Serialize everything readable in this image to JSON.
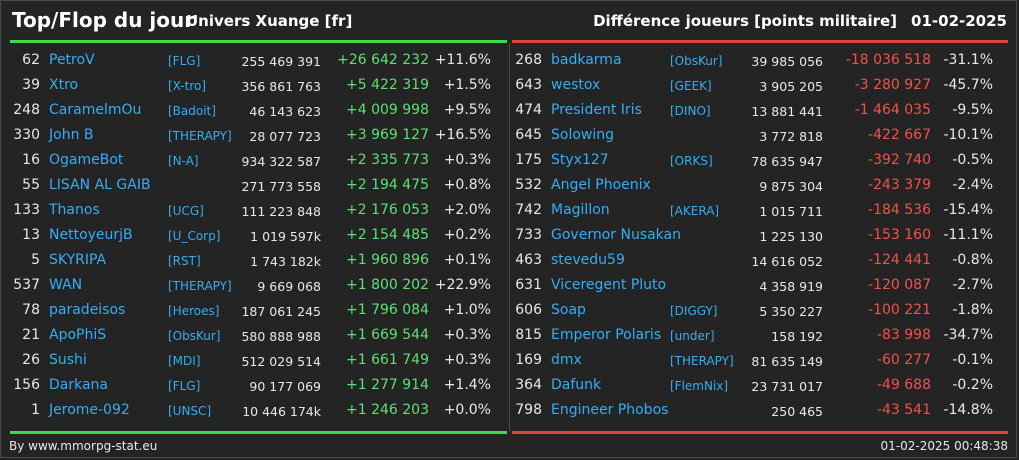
{
  "header": {
    "title": "Top/Flop du jour",
    "universe": "Univers Xuange [fr]",
    "right_title": "Différence joueurs [points militaire]",
    "date": "01-02-2025"
  },
  "colors": {
    "accent_blue": "#34aef5",
    "up_green": "#5ee072",
    "down_red": "#f0524a",
    "bg": "#242424"
  },
  "top": [
    {
      "rank": "62",
      "name": "PetroV",
      "ally": "[FLG]",
      "points": "255 469 391",
      "diff": "+26 642 232",
      "pct": "+11.6%"
    },
    {
      "rank": "39",
      "name": "Xtro",
      "ally": "[X-tro]",
      "points": "356 861 763",
      "diff": "+5 422 319",
      "pct": "+1.5%"
    },
    {
      "rank": "248",
      "name": "CaramelmOu",
      "ally": "[Badoit]",
      "points": "46 143 623",
      "diff": "+4 009 998",
      "pct": "+9.5%"
    },
    {
      "rank": "330",
      "name": "John B",
      "ally": "[THERAPY]",
      "points": "28 077 723",
      "diff": "+3 969 127",
      "pct": "+16.5%"
    },
    {
      "rank": "16",
      "name": "OgameBot",
      "ally": "[N-A]",
      "points": "934 322 587",
      "diff": "+2 335 773",
      "pct": "+0.3%"
    },
    {
      "rank": "55",
      "name": "LISAN AL GAIB",
      "ally": "",
      "points": "271 773 558",
      "diff": "+2 194 475",
      "pct": "+0.8%"
    },
    {
      "rank": "133",
      "name": "Thanos",
      "ally": "[UCG]",
      "points": "111 223 848",
      "diff": "+2 176 053",
      "pct": "+2.0%"
    },
    {
      "rank": "13",
      "name": "NettoyeurjB",
      "ally": "[U_Corp]",
      "points": "1 019 597k",
      "diff": "+2 154 485",
      "pct": "+0.2%"
    },
    {
      "rank": "5",
      "name": "SKYRIPA",
      "ally": "[RST]",
      "points": "1 743 182k",
      "diff": "+1 960 896",
      "pct": "+0.1%"
    },
    {
      "rank": "537",
      "name": "WAN",
      "ally": "[THERAPY]",
      "points": "9 669 068",
      "diff": "+1 800 202",
      "pct": "+22.9%"
    },
    {
      "rank": "78",
      "name": "paradeisos",
      "ally": "[Heroes]",
      "points": "187 061 245",
      "diff": "+1 796 084",
      "pct": "+1.0%"
    },
    {
      "rank": "21",
      "name": "ApoPhiS",
      "ally": "[ObsKur]",
      "points": "580 888 988",
      "diff": "+1 669 544",
      "pct": "+0.3%"
    },
    {
      "rank": "26",
      "name": "Sushi",
      "ally": "[MDI]",
      "points": "512 029 514",
      "diff": "+1 661 749",
      "pct": "+0.3%"
    },
    {
      "rank": "156",
      "name": "Darkana",
      "ally": "[FLG]",
      "points": "90 177 069",
      "diff": "+1 277 914",
      "pct": "+1.4%"
    },
    {
      "rank": "1",
      "name": "Jerome-092",
      "ally": "[UNSC]",
      "points": "10 446 174k",
      "diff": "+1 246 203",
      "pct": "+0.0%"
    }
  ],
  "flop": [
    {
      "rank": "268",
      "name": "badkarma",
      "ally": "[ObsKur]",
      "points": "39 985 056",
      "diff": "-18 036 518",
      "pct": "-31.1%"
    },
    {
      "rank": "643",
      "name": "westox",
      "ally": "[GEEK]",
      "points": "3 905 205",
      "diff": "-3 280 927",
      "pct": "-45.7%"
    },
    {
      "rank": "474",
      "name": "President Iris",
      "ally": "[DINO]",
      "points": "13 881 441",
      "diff": "-1 464 035",
      "pct": "-9.5%"
    },
    {
      "rank": "645",
      "name": "Solowing",
      "ally": "",
      "points": "3 772 818",
      "diff": "-422 667",
      "pct": "-10.1%"
    },
    {
      "rank": "175",
      "name": "Styx127",
      "ally": "[ORKS]",
      "points": "78 635 947",
      "diff": "-392 740",
      "pct": "-0.5%"
    },
    {
      "rank": "532",
      "name": "Angel Phoenix",
      "ally": "",
      "points": "9 875 304",
      "diff": "-243 379",
      "pct": "-2.4%"
    },
    {
      "rank": "742",
      "name": "Magillon",
      "ally": "[AKERA]",
      "points": "1 015 711",
      "diff": "-184 536",
      "pct": "-15.4%"
    },
    {
      "rank": "733",
      "name": "Governor Nusakan",
      "ally": "",
      "points": "1 225 130",
      "diff": "-153 160",
      "pct": "-11.1%"
    },
    {
      "rank": "463",
      "name": "stevedu59",
      "ally": "",
      "points": "14 616 052",
      "diff": "-124 441",
      "pct": "-0.8%"
    },
    {
      "rank": "631",
      "name": "Viceregent Pluto",
      "ally": "",
      "points": "4 358 919",
      "diff": "-120 087",
      "pct": "-2.7%"
    },
    {
      "rank": "606",
      "name": "Soap",
      "ally": "[DIGGY]",
      "points": "5 350 227",
      "diff": "-100 221",
      "pct": "-1.8%"
    },
    {
      "rank": "815",
      "name": "Emperor Polaris",
      "ally": "[under]",
      "points": "158 192",
      "diff": "-83 998",
      "pct": "-34.7%"
    },
    {
      "rank": "169",
      "name": "dmx",
      "ally": "[THERAPY]",
      "points": "81 635 149",
      "diff": "-60 277",
      "pct": "-0.1%"
    },
    {
      "rank": "364",
      "name": "Dafunk",
      "ally": "[FlemNix]",
      "points": "23 731 017",
      "diff": "-49 688",
      "pct": "-0.2%"
    },
    {
      "rank": "798",
      "name": "Engineer Phobos",
      "ally": "",
      "points": "250 465",
      "diff": "-43 541",
      "pct": "-14.8%"
    }
  ],
  "footer": {
    "source": "By www.mmorpg-stat.eu",
    "timestamp": "01-02-2025 00:48:38"
  }
}
